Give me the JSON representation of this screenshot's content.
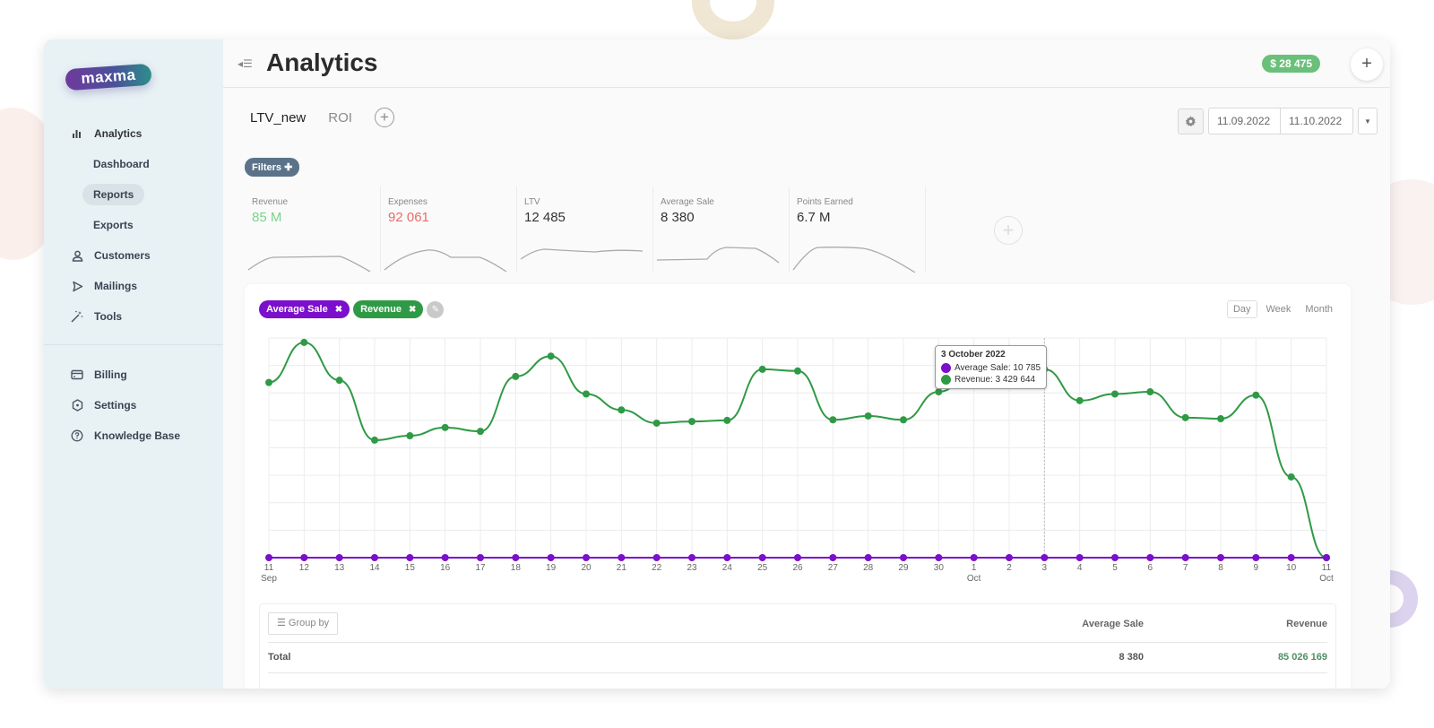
{
  "sidebar": {
    "logo": "maxma",
    "items": [
      {
        "label": "Analytics",
        "icon": "bar-chart-icon"
      },
      {
        "label": "Dashboard"
      },
      {
        "label": "Reports",
        "active": true
      },
      {
        "label": "Exports"
      },
      {
        "label": "Customers",
        "icon": "user-icon"
      },
      {
        "label": "Mailings",
        "icon": "send-icon"
      },
      {
        "label": "Tools",
        "icon": "magic-wand-icon"
      }
    ],
    "bottom_items": [
      {
        "label": "Billing",
        "icon": "credit-card-icon"
      },
      {
        "label": "Settings",
        "icon": "settings-hexagon-icon"
      },
      {
        "label": "Knowledge Base",
        "icon": "help-circle-icon"
      }
    ]
  },
  "header": {
    "title": "Analytics",
    "balance": "$ 28 475",
    "add_label": "+"
  },
  "tabs": [
    {
      "label": "LTV_new",
      "active": true
    },
    {
      "label": "ROI",
      "active": false
    }
  ],
  "tab_add_label": "+",
  "date_range": {
    "from": "11.09.2022",
    "to": "11.10.2022"
  },
  "filters_label": "Filters ✚",
  "metrics": [
    {
      "label": "Revenue",
      "value": "85 M",
      "color": "#7cd38a"
    },
    {
      "label": "Expenses",
      "value": "92 061",
      "color": "#ea6a6a"
    },
    {
      "label": "LTV",
      "value": "12 485",
      "color": "#333333"
    },
    {
      "label": "Average Sale",
      "value": "8 380",
      "color": "#333333"
    },
    {
      "label": "Points Earned",
      "value": "6.7 M",
      "color": "#333333"
    }
  ],
  "metric_add_label": "+",
  "chart_chips": [
    {
      "label": "Average Sale",
      "close": "✖",
      "color": "#7b0fcc"
    },
    {
      "label": "Revenue",
      "close": "✖",
      "color": "#2f9a45"
    }
  ],
  "period": {
    "options": [
      "Day",
      "Week",
      "Month"
    ],
    "selected": "Day"
  },
  "tooltip": {
    "title": "3 October 2022",
    "rows": [
      {
        "label": "Average Sale: 10 785",
        "color": "#7b0fcc"
      },
      {
        "label": "Revenue: 3 429 644",
        "color": "#2f9a45"
      }
    ]
  },
  "table": {
    "group_by_label": "Group by",
    "columns": [
      "Average Sale",
      "Revenue"
    ],
    "rows": [
      {
        "label": "Total",
        "average_sale": "8 380",
        "revenue": "85 026 169"
      }
    ]
  },
  "colors": {
    "revenue": "#2f9a45",
    "average_sale": "#7b0fcc",
    "balance_badge": "#6ac07a",
    "filters": "#5b7288"
  },
  "chart_data": {
    "type": "line",
    "title": "",
    "xlabel": "",
    "ylabel": "",
    "x": [
      "11 Sep",
      "12",
      "13",
      "14",
      "15",
      "16",
      "17",
      "18",
      "19",
      "20",
      "21",
      "22",
      "23",
      "24",
      "25",
      "26",
      "27",
      "28",
      "29",
      "30",
      "1 Oct",
      "2",
      "3",
      "4",
      "5",
      "6",
      "7",
      "8",
      "9",
      "10",
      "11 Oct"
    ],
    "tick_labels": [
      "11\nSep",
      "12",
      "13",
      "14",
      "15",
      "16",
      "17",
      "18",
      "19",
      "20",
      "21",
      "22",
      "23",
      "24",
      "25",
      "26",
      "27",
      "28",
      "29",
      "30",
      "1\nOct",
      "2",
      "3",
      "4",
      "5",
      "6",
      "7",
      "8",
      "9",
      "10",
      "11\nOct"
    ],
    "ylim": [
      0,
      4000000
    ],
    "grid": true,
    "y_axis_labels_visible": false,
    "series": [
      {
        "name": "Revenue",
        "color": "#2f9a45",
        "values": [
          3190000,
          3920000,
          3230000,
          2140000,
          2220000,
          2370000,
          2300000,
          3300000,
          3670000,
          2980000,
          2690000,
          2450000,
          2480000,
          2500000,
          3430000,
          3400000,
          2510000,
          2580000,
          2510000,
          3020000,
          3380000,
          3540000,
          3429644,
          2860000,
          2980000,
          3020000,
          2550000,
          2530000,
          2960000,
          1470000,
          0
        ]
      },
      {
        "name": "Average Sale",
        "color": "#7b0fcc",
        "values": [
          8400,
          8200,
          8300,
          8100,
          8300,
          8200,
          8400,
          8300,
          8500,
          8200,
          8300,
          8100,
          8400,
          8300,
          8500,
          8400,
          8200,
          8300,
          8400,
          8300,
          8500,
          8600,
          10785,
          8400,
          8300,
          8200,
          8100,
          8300,
          8400,
          8200,
          0
        ]
      }
    ],
    "tooltip": {
      "x": "3 October 2022",
      "Average Sale": 10785,
      "Revenue": 3429644
    }
  }
}
